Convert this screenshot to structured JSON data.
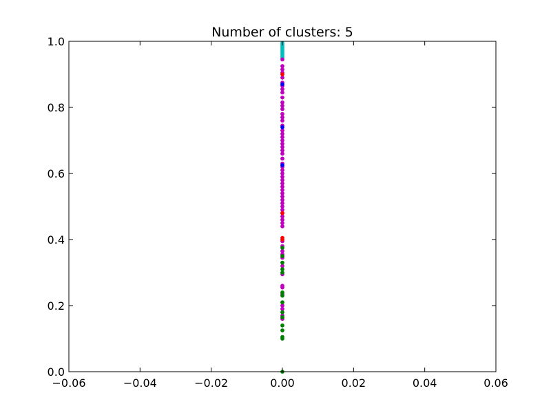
{
  "chart_data": {
    "type": "scatter",
    "title": "Number of clusters: 5",
    "xlabel": "",
    "ylabel": "",
    "xlim": [
      -0.06,
      0.06
    ],
    "ylim": [
      0.0,
      1.0
    ],
    "xticks": [
      "−0.06",
      "−0.04",
      "−0.02",
      "0.00",
      "0.02",
      "0.04",
      "0.06"
    ],
    "yticks": [
      "0.0",
      "0.2",
      "0.4",
      "0.6",
      "0.8",
      "1.0"
    ],
    "grid": false,
    "series": [
      {
        "color": "#00bfbf",
        "x": [
          0,
          0,
          0,
          0,
          0,
          0,
          0,
          0,
          0,
          0
        ],
        "y": [
          0.995,
          0.99,
          0.985,
          0.98,
          0.975,
          0.97,
          0.965,
          0.96,
          0.955,
          0.95
        ]
      },
      {
        "color": "#bf00bf",
        "x": [
          0,
          0,
          0,
          0,
          0,
          0,
          0,
          0,
          0,
          0,
          0,
          0,
          0,
          0,
          0,
          0,
          0,
          0,
          0,
          0,
          0,
          0,
          0,
          0,
          0,
          0,
          0,
          0,
          0,
          0,
          0,
          0,
          0,
          0,
          0,
          0,
          0,
          0,
          0,
          0,
          0,
          0,
          0,
          0,
          0,
          0,
          0,
          0,
          0,
          0,
          0,
          0,
          0,
          0,
          0,
          0,
          0,
          0,
          0,
          0
        ],
        "y": [
          0.945,
          0.925,
          0.915,
          0.905,
          0.89,
          0.875,
          0.865,
          0.855,
          0.845,
          0.83,
          0.815,
          0.805,
          0.795,
          0.78,
          0.77,
          0.76,
          0.745,
          0.73,
          0.72,
          0.71,
          0.7,
          0.69,
          0.68,
          0.67,
          0.66,
          0.645,
          0.63,
          0.62,
          0.61,
          0.6,
          0.59,
          0.58,
          0.57,
          0.56,
          0.55,
          0.54,
          0.53,
          0.52,
          0.51,
          0.5,
          0.49,
          0.48,
          0.47,
          0.46,
          0.45,
          0.44,
          0.395,
          0.38,
          0.365,
          0.355,
          0.345,
          0.32,
          0.295,
          0.26,
          0.255,
          0.235,
          0.2,
          0.19,
          0.17,
          0.16
        ]
      },
      {
        "color": "#ff0000",
        "x": [
          0,
          0,
          0,
          0
        ],
        "y": [
          0.9,
          0.48,
          0.405,
          0.4
        ]
      },
      {
        "color": "#0000ff",
        "x": [
          0,
          0,
          0
        ],
        "y": [
          0.87,
          0.74,
          0.625
        ]
      },
      {
        "color": "#008000",
        "x": [
          0,
          0,
          0,
          0,
          0,
          0,
          0,
          0,
          0,
          0,
          0,
          0,
          0,
          0,
          0
        ],
        "y": [
          0.375,
          0.35,
          0.33,
          0.31,
          0.3,
          0.24,
          0.23,
          0.21,
          0.18,
          0.165,
          0.14,
          0.125,
          0.105,
          0.1,
          0.0
        ]
      }
    ]
  }
}
